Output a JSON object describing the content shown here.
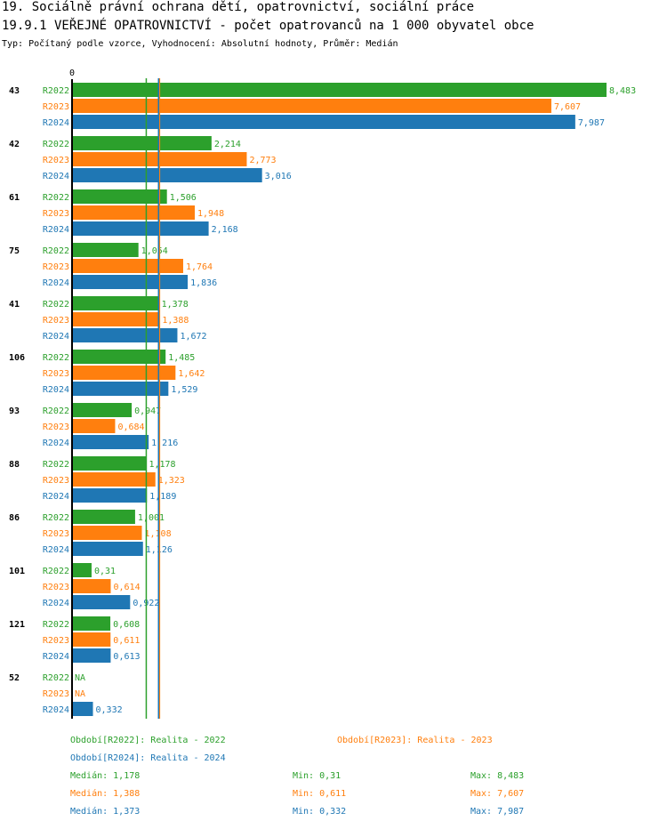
{
  "header": {
    "title": "19. Sociálně právní ochrana dětí, opatrovnictví, sociální práce",
    "subtitle": "19.9.1 VEŘEJNÉ OPATROVNICTVÍ - počet opatrovanců na 1 000 obyvatel obce",
    "info": "Typ: Počítaný podle vzorce, Vyhodnocení: Absolutní hodnoty, Průměr: Medián"
  },
  "chart_data": {
    "type": "bar",
    "orientation": "horizontal",
    "xaxis_tick_label": "0",
    "xlim": [
      0,
      8.483
    ],
    "categories": [
      "43",
      "42",
      "61",
      "75",
      "41",
      "106",
      "93",
      "88",
      "86",
      "101",
      "121",
      "52"
    ],
    "series": [
      {
        "name": "R2022",
        "color": "#2ca02c",
        "values": [
          8.483,
          2.214,
          1.506,
          1.054,
          1.378,
          1.485,
          0.947,
          1.178,
          1.001,
          0.31,
          0.608,
          null
        ],
        "median": 1.178
      },
      {
        "name": "R2023",
        "color": "#ff7f0e",
        "values": [
          7.607,
          2.773,
          1.948,
          1.764,
          1.388,
          1.642,
          0.684,
          1.323,
          1.108,
          0.614,
          0.611,
          null
        ],
        "median": 1.388
      },
      {
        "name": "R2024",
        "color": "#1f77b4",
        "values": [
          7.987,
          3.016,
          2.168,
          1.836,
          1.672,
          1.529,
          1.216,
          1.189,
          1.126,
          0.922,
          0.613,
          0.332
        ],
        "median": 1.373
      }
    ],
    "na_label": "NA",
    "median_lines": true
  },
  "legend": {
    "periods": [
      "Období[R2022]: Realita - 2022",
      "Období[R2023]: Realita - 2023",
      "Období[R2024]: Realita - 2024"
    ],
    "stats": [
      {
        "median": "Medián: 1,178",
        "min": "Min: 0,31",
        "max": "Max: 8,483"
      },
      {
        "median": "Medián: 1,388",
        "min": "Min: 0,611",
        "max": "Max: 7,607"
      },
      {
        "median": "Medián: 1,373",
        "min": "Min: 0,332",
        "max": "Max: 7,987"
      }
    ]
  }
}
